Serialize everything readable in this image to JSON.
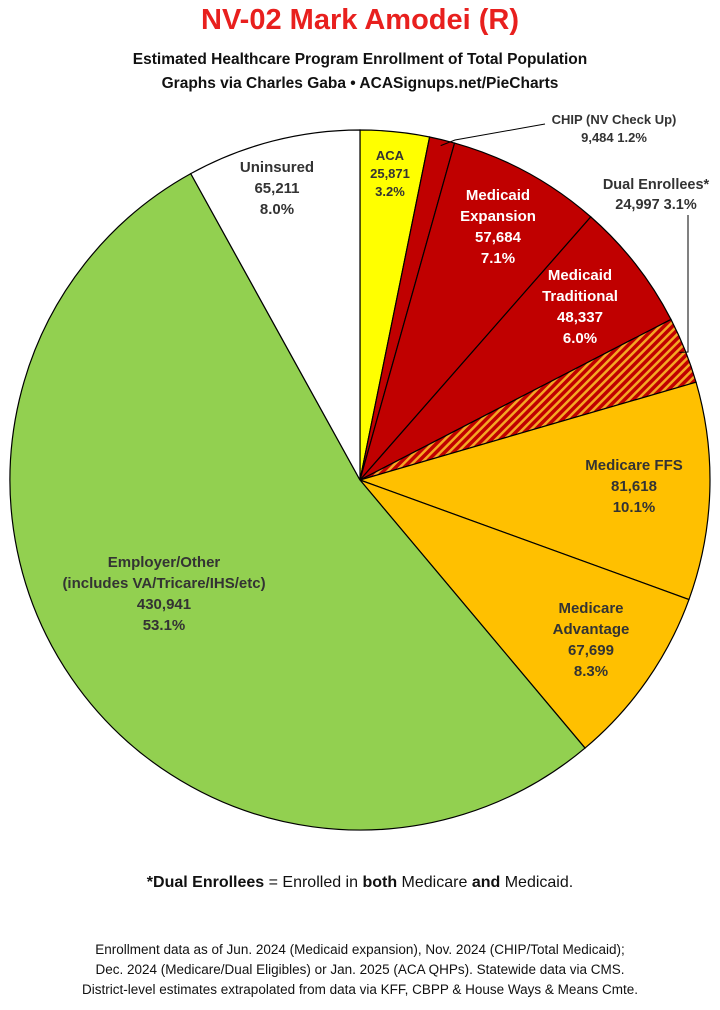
{
  "title": "NV-02 Mark Amodei (R)",
  "subtitle_1": "Estimated Healthcare Program Enrollment of Total Population",
  "subtitle_2": "Graphs via Charles Gaba  •  ACASignups.net/PieCharts",
  "chart_data": {
    "type": "pie",
    "title": "NV-02 Mark Amodei (R)",
    "slices": [
      {
        "name": "ACA",
        "label_lines": [
          "ACA",
          "25,871",
          "3.2%"
        ],
        "value": 25871,
        "percent": 3.2,
        "color": "#ffff00"
      },
      {
        "name": "CHIP (NV Check Up)",
        "label_lines": [
          "CHIP (NV Check Up)",
          "9,484 1.2%"
        ],
        "value": 9484,
        "percent": 1.2,
        "color": "#c00000"
      },
      {
        "name": "Medicaid Expansion",
        "label_lines": [
          "Medicaid",
          "Expansion",
          "57,684",
          "7.1%"
        ],
        "value": 57684,
        "percent": 7.1,
        "color": "#c00000"
      },
      {
        "name": "Medicaid Traditional",
        "label_lines": [
          "Medicaid",
          "Traditional",
          "48,337",
          "6.0%"
        ],
        "value": 48337,
        "percent": 6.0,
        "color": "#c00000"
      },
      {
        "name": "Dual Enrollees*",
        "label_lines": [
          "Dual Enrollees*",
          "24,997 3.1%"
        ],
        "value": 24997,
        "percent": 3.1,
        "color": "#c00000",
        "pattern": "hatched-orange"
      },
      {
        "name": "Medicare FFS",
        "label_lines": [
          "Medicare FFS",
          "81,618",
          "10.1%"
        ],
        "value": 81618,
        "percent": 10.1,
        "color": "#ffc000"
      },
      {
        "name": "Medicare Advantage",
        "label_lines": [
          "Medicare",
          "Advantage",
          "67,699",
          "8.3%"
        ],
        "value": 67699,
        "percent": 8.3,
        "color": "#ffc000"
      },
      {
        "name": "Employer/Other (includes VA/Tricare/IHS/etc)",
        "label_lines": [
          "Employer/Other",
          "(includes VA/Tricare/IHS/etc)",
          "430,941",
          "53.1%"
        ],
        "value": 430941,
        "percent": 53.1,
        "color": "#92d050"
      },
      {
        "name": "Uninsured",
        "label_lines": [
          "Uninsured",
          "65,211",
          "8.0%"
        ],
        "value": 65211,
        "percent": 8.0,
        "color": "#ffffff"
      }
    ]
  },
  "footnote": {
    "prefix": "*Dual Enrollees",
    "mid1": " = Enrolled in ",
    "both": "both",
    "mid2": " Medicare ",
    "and": "and",
    "end": " Medicaid."
  },
  "source_1": "Enrollment data as of Jun. 2024 (Medicaid expansion), Nov. 2024 (CHIP/Total Medicaid);",
  "source_2": "Dec. 2024 (Medicare/Dual Eligibles) or Jan. 2025 (ACA QHPs). Statewide data via CMS.",
  "source_3": "District-level estimates extrapolated from data via KFF, CBPP & House Ways & Means Cmte."
}
